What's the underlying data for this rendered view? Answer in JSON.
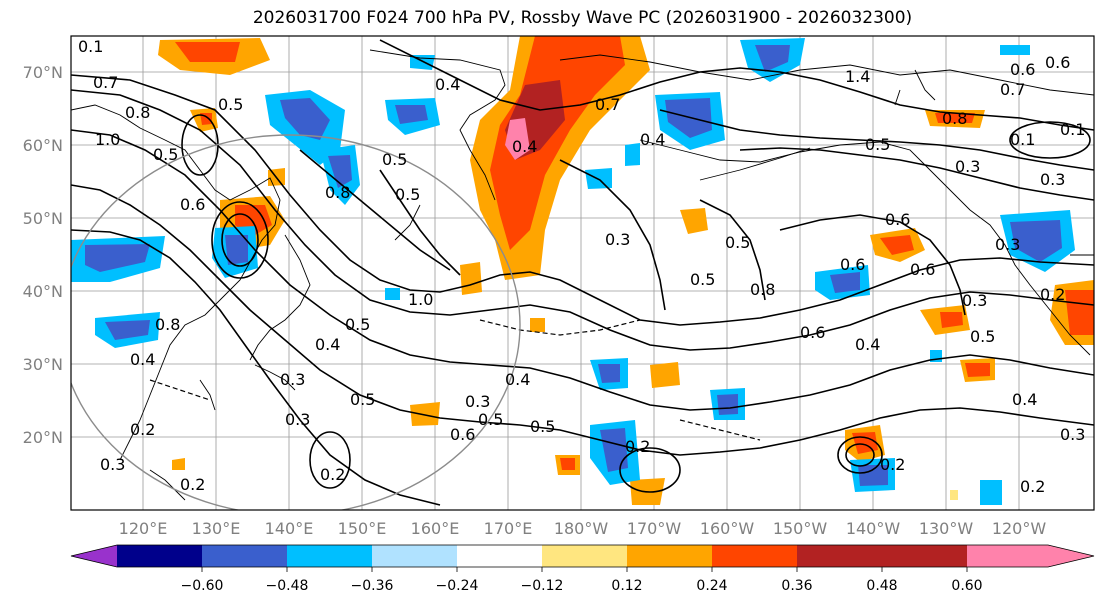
{
  "title": "2026031700 F024 700 hPa PV, Rossby Wave PC (2026031900 - 2026032300)",
  "lat_labels": [
    "70°N",
    "60°N",
    "50°N",
    "40°N",
    "30°N",
    "20°N"
  ],
  "lon_labels": [
    "120°E",
    "130°E",
    "140°E",
    "150°E",
    "160°E",
    "170°E",
    "180°W",
    "170°W",
    "160°W",
    "150°W",
    "140°W",
    "130°W",
    "120°W"
  ],
  "colorbar": {
    "ticks": [
      "−0.60",
      "−0.48",
      "−0.36",
      "−0.24",
      "−0.12",
      "0.12",
      "0.24",
      "0.36",
      "0.48",
      "0.60"
    ],
    "colors": [
      "#9932cc",
      "#00008b",
      "#3a5fcd",
      "#00bfff",
      "#b0e2ff",
      "#ffffff",
      "#ffe680",
      "#ffa500",
      "#ff4500",
      "#b22222",
      "#ff82ab"
    ]
  },
  "contour_labels": [
    "0.1",
    "0.7",
    "0.5",
    "0.8",
    "1.0",
    "0.5",
    "0.6",
    "0.4",
    "0.5",
    "0.4",
    "0.3",
    "0.5",
    "0.8",
    "0.4",
    "0.3",
    "0.3",
    "0.5",
    "0.6",
    "0.7",
    "0.6",
    "1.0",
    "0.8",
    "0.6",
    "0.5",
    "0.4",
    "0.8",
    "1.4",
    "0.5",
    "0.3",
    "0.6",
    "0.5",
    "0.3",
    "0.2",
    "0.4",
    "0.3",
    "0.5",
    "0.4",
    "0.3",
    "0.4",
    "0.5",
    "0.6",
    "0.5",
    "0.2",
    "0.2",
    "0.2",
    "0.3",
    "0.5",
    "0.2",
    "0.4",
    "0.2",
    "0.3",
    "0.2",
    "0.6",
    "0.7",
    "0.6",
    "0.1",
    "0.8",
    "0.3",
    "0.1"
  ]
}
